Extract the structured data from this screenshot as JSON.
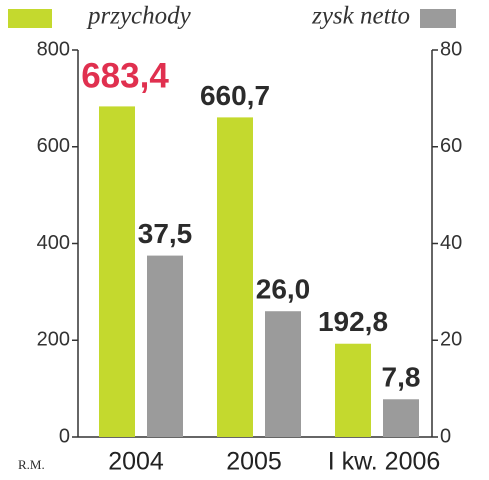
{
  "chart_data": {
    "type": "bar",
    "categories": [
      "2004",
      "2005",
      "I kw. 2006"
    ],
    "series": [
      {
        "name": "przychody",
        "color": "#c4d92e",
        "values": [
          683.4,
          660.7,
          192.8
        ],
        "value_labels": [
          "683,4",
          "660,7",
          "192,8"
        ],
        "value_label_colors": [
          "#e0304f",
          "#2b2b2b",
          "#2b2b2b"
        ]
      },
      {
        "name": "zysk netto",
        "color": "#9b9b9b",
        "axis": "y2",
        "values": [
          37.5,
          26.0,
          7.8
        ],
        "value_labels": [
          "37,5",
          "26,0",
          "7,8"
        ],
        "value_label_colors": [
          "#2b2b2b",
          "#2b2b2b",
          "#2b2b2b"
        ]
      }
    ],
    "ylim": [
      0,
      800
    ],
    "yticks": [
      0,
      200,
      400,
      600,
      800
    ],
    "y2lim": [
      0,
      80
    ],
    "y2ticks": [
      0,
      20,
      40,
      60,
      80
    ],
    "source": "R.M."
  }
}
